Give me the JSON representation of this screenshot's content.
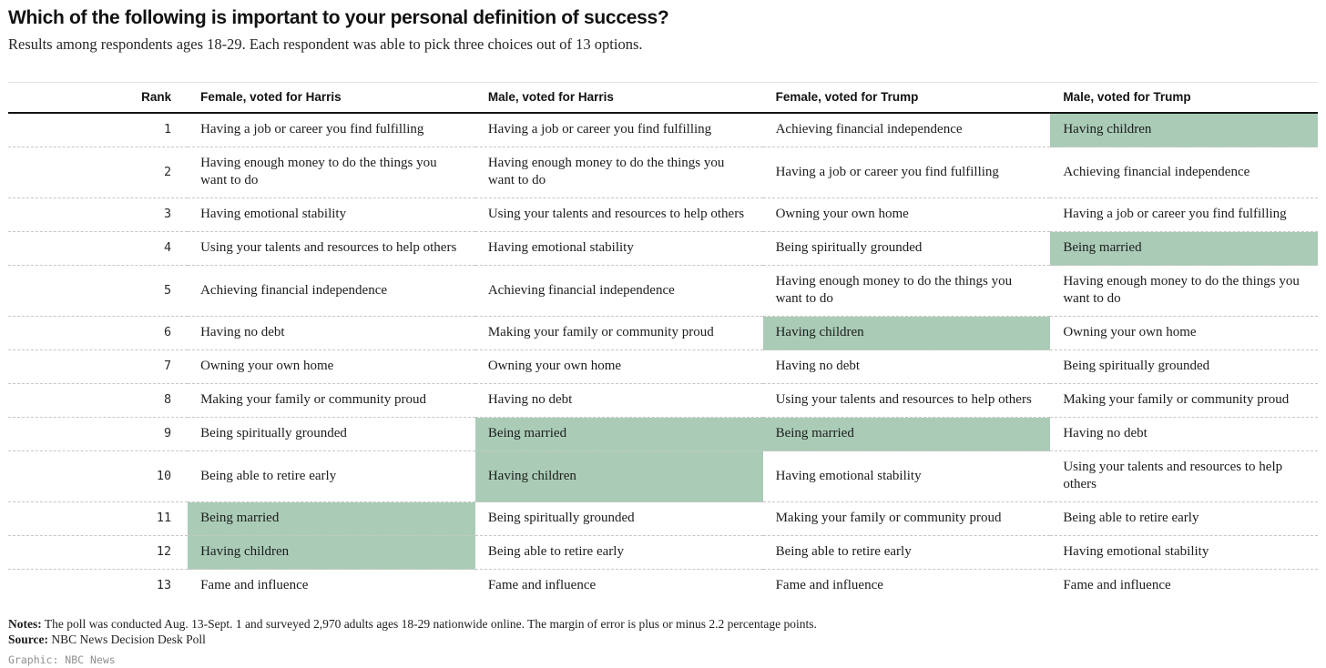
{
  "title": "Which of the following is important to your personal definition of success?",
  "subtitle": "Results among respondents ages 18-29. Each respondent was able to pick three choices out of 13 options.",
  "colors": {
    "highlight": "#aaccb7",
    "header_rule": "#141414",
    "row_divider": "#c7c7c7"
  },
  "chart_data": {
    "type": "table",
    "title": "Which of the following is important to your personal definition of success?",
    "subtitle": "Results among respondents ages 18-29. Each respondent was able to pick three choices out of 13 options.",
    "columns": [
      "Rank",
      "Female, voted for Harris",
      "Male, voted for Harris",
      "Female, voted for Trump",
      "Male, voted for Trump"
    ],
    "rows": [
      {
        "rank": "1",
        "cells": [
          {
            "text": "Having a job or career you find fulfilling",
            "highlight": false
          },
          {
            "text": "Having a job or career you find fulfilling",
            "highlight": false
          },
          {
            "text": "Achieving financial independence",
            "highlight": false
          },
          {
            "text": "Having children",
            "highlight": true
          }
        ]
      },
      {
        "rank": "2",
        "cells": [
          {
            "text": "Having enough money to do the things you want to do",
            "highlight": false
          },
          {
            "text": "Having enough money to do the things you want to do",
            "highlight": false
          },
          {
            "text": "Having a job or career you find fulfilling",
            "highlight": false
          },
          {
            "text": "Achieving financial independence",
            "highlight": false
          }
        ]
      },
      {
        "rank": "3",
        "cells": [
          {
            "text": "Having emotional stability",
            "highlight": false
          },
          {
            "text": "Using your talents and resources to help others",
            "highlight": false
          },
          {
            "text": "Owning your own home",
            "highlight": false
          },
          {
            "text": "Having a job or career you find fulfilling",
            "highlight": false
          }
        ]
      },
      {
        "rank": "4",
        "cells": [
          {
            "text": "Using your talents and resources to help others",
            "highlight": false
          },
          {
            "text": "Having emotional stability",
            "highlight": false
          },
          {
            "text": "Being spiritually grounded",
            "highlight": false
          },
          {
            "text": "Being married",
            "highlight": true
          }
        ]
      },
      {
        "rank": "5",
        "cells": [
          {
            "text": "Achieving financial independence",
            "highlight": false
          },
          {
            "text": "Achieving financial independence",
            "highlight": false
          },
          {
            "text": "Having enough money to do the things you want to do",
            "highlight": false
          },
          {
            "text": "Having enough money to do the things you want to do",
            "highlight": false
          }
        ]
      },
      {
        "rank": "6",
        "cells": [
          {
            "text": "Having no debt",
            "highlight": false
          },
          {
            "text": "Making your family or community proud",
            "highlight": false
          },
          {
            "text": "Having children",
            "highlight": true
          },
          {
            "text": "Owning your own home",
            "highlight": false
          }
        ]
      },
      {
        "rank": "7",
        "cells": [
          {
            "text": "Owning your own home",
            "highlight": false
          },
          {
            "text": "Owning your own home",
            "highlight": false
          },
          {
            "text": "Having no debt",
            "highlight": false
          },
          {
            "text": "Being spiritually grounded",
            "highlight": false
          }
        ]
      },
      {
        "rank": "8",
        "cells": [
          {
            "text": "Making your family or community proud",
            "highlight": false
          },
          {
            "text": "Having no debt",
            "highlight": false
          },
          {
            "text": "Using your talents and resources to help others",
            "highlight": false
          },
          {
            "text": "Making your family or community proud",
            "highlight": false
          }
        ]
      },
      {
        "rank": "9",
        "cells": [
          {
            "text": "Being spiritually grounded",
            "highlight": false
          },
          {
            "text": "Being married",
            "highlight": true
          },
          {
            "text": "Being married",
            "highlight": true
          },
          {
            "text": "Having no debt",
            "highlight": false
          }
        ]
      },
      {
        "rank": "10",
        "cells": [
          {
            "text": "Being able to retire early",
            "highlight": false
          },
          {
            "text": "Having children",
            "highlight": true
          },
          {
            "text": "Having emotional stability",
            "highlight": false
          },
          {
            "text": "Using your talents and resources to help others",
            "highlight": false
          }
        ]
      },
      {
        "rank": "11",
        "cells": [
          {
            "text": "Being married",
            "highlight": true
          },
          {
            "text": "Being spiritually grounded",
            "highlight": false
          },
          {
            "text": "Making your family or community proud",
            "highlight": false
          },
          {
            "text": "Being able to retire early",
            "highlight": false
          }
        ]
      },
      {
        "rank": "12",
        "cells": [
          {
            "text": "Having children",
            "highlight": true
          },
          {
            "text": "Being able to retire early",
            "highlight": false
          },
          {
            "text": "Being able to retire early",
            "highlight": false
          },
          {
            "text": "Having emotional stability",
            "highlight": false
          }
        ]
      },
      {
        "rank": "13",
        "cells": [
          {
            "text": "Fame and influence",
            "highlight": false
          },
          {
            "text": "Fame and influence",
            "highlight": false
          },
          {
            "text": "Fame and influence",
            "highlight": false
          },
          {
            "text": "Fame and influence",
            "highlight": false
          }
        ]
      }
    ]
  },
  "footer": {
    "notes_label": "Notes:",
    "notes_text": " The poll was conducted Aug. 13-Sept. 1 and surveyed 2,970 adults ages 18-29 nationwide online. The margin of error is plus or minus 2.2 percentage points.",
    "source_label": "Source:",
    "source_text": " NBC News Decision Desk Poll",
    "credit": "Graphic: NBC News"
  }
}
